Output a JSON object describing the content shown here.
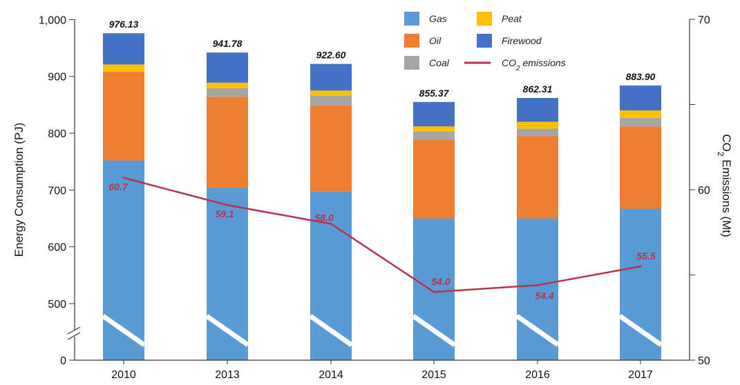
{
  "chart_data": {
    "type": "bar",
    "stacked": true,
    "categories": [
      "2010",
      "2013",
      "2014",
      "2015",
      "2016",
      "2017"
    ],
    "series": [
      {
        "name": "Gas",
        "color": "#5b9bd5",
        "values": [
          752,
          704,
          697,
          650,
          650,
          667
        ]
      },
      {
        "name": "Oil",
        "color": "#ed7d31",
        "values": [
          156,
          160,
          152,
          138,
          145,
          145
        ]
      },
      {
        "name": "Coal",
        "color": "#a5a5a5",
        "values": [
          0,
          15,
          17,
          15,
          13,
          15
        ]
      },
      {
        "name": "Peat",
        "color": "#ffc000",
        "values": [
          13,
          10,
          9,
          9,
          12,
          13
        ]
      },
      {
        "name": "Firewood",
        "color": "#4472c4",
        "values": [
          55,
          53,
          47,
          43,
          42,
          44
        ]
      }
    ],
    "totals": [
      "976.13",
      "941.78",
      "922.60",
      "855.37",
      "862.31",
      "883.90"
    ],
    "line": {
      "name_main": "CO",
      "name_sub": "2",
      "name_rest": " emissions",
      "color": "#b5334a",
      "values": [
        60.7,
        59.1,
        58.0,
        54.0,
        54.4,
        55.5
      ],
      "labels": [
        "60.7",
        "59.1",
        "58.0",
        "54.0",
        "54.4",
        "55.5"
      ]
    },
    "y_left": {
      "label": "Energy Consumption (PJ)",
      "broken_axis": true,
      "ticks": [
        0,
        500,
        600,
        700,
        800,
        900,
        1000
      ],
      "tick_labels": [
        "0",
        "500",
        "600",
        "700",
        "800",
        "900",
        "1,000"
      ]
    },
    "y_right": {
      "label_main": "CO",
      "label_sub": "2",
      "label_rest": " Emissions (Mt)",
      "ylim": [
        50,
        70
      ],
      "ticks": [
        50,
        55,
        60,
        65,
        70
      ],
      "tick_labels": [
        "50",
        "",
        "60",
        "",
        "70"
      ]
    },
    "legend_position": "top-right",
    "grid": false
  }
}
